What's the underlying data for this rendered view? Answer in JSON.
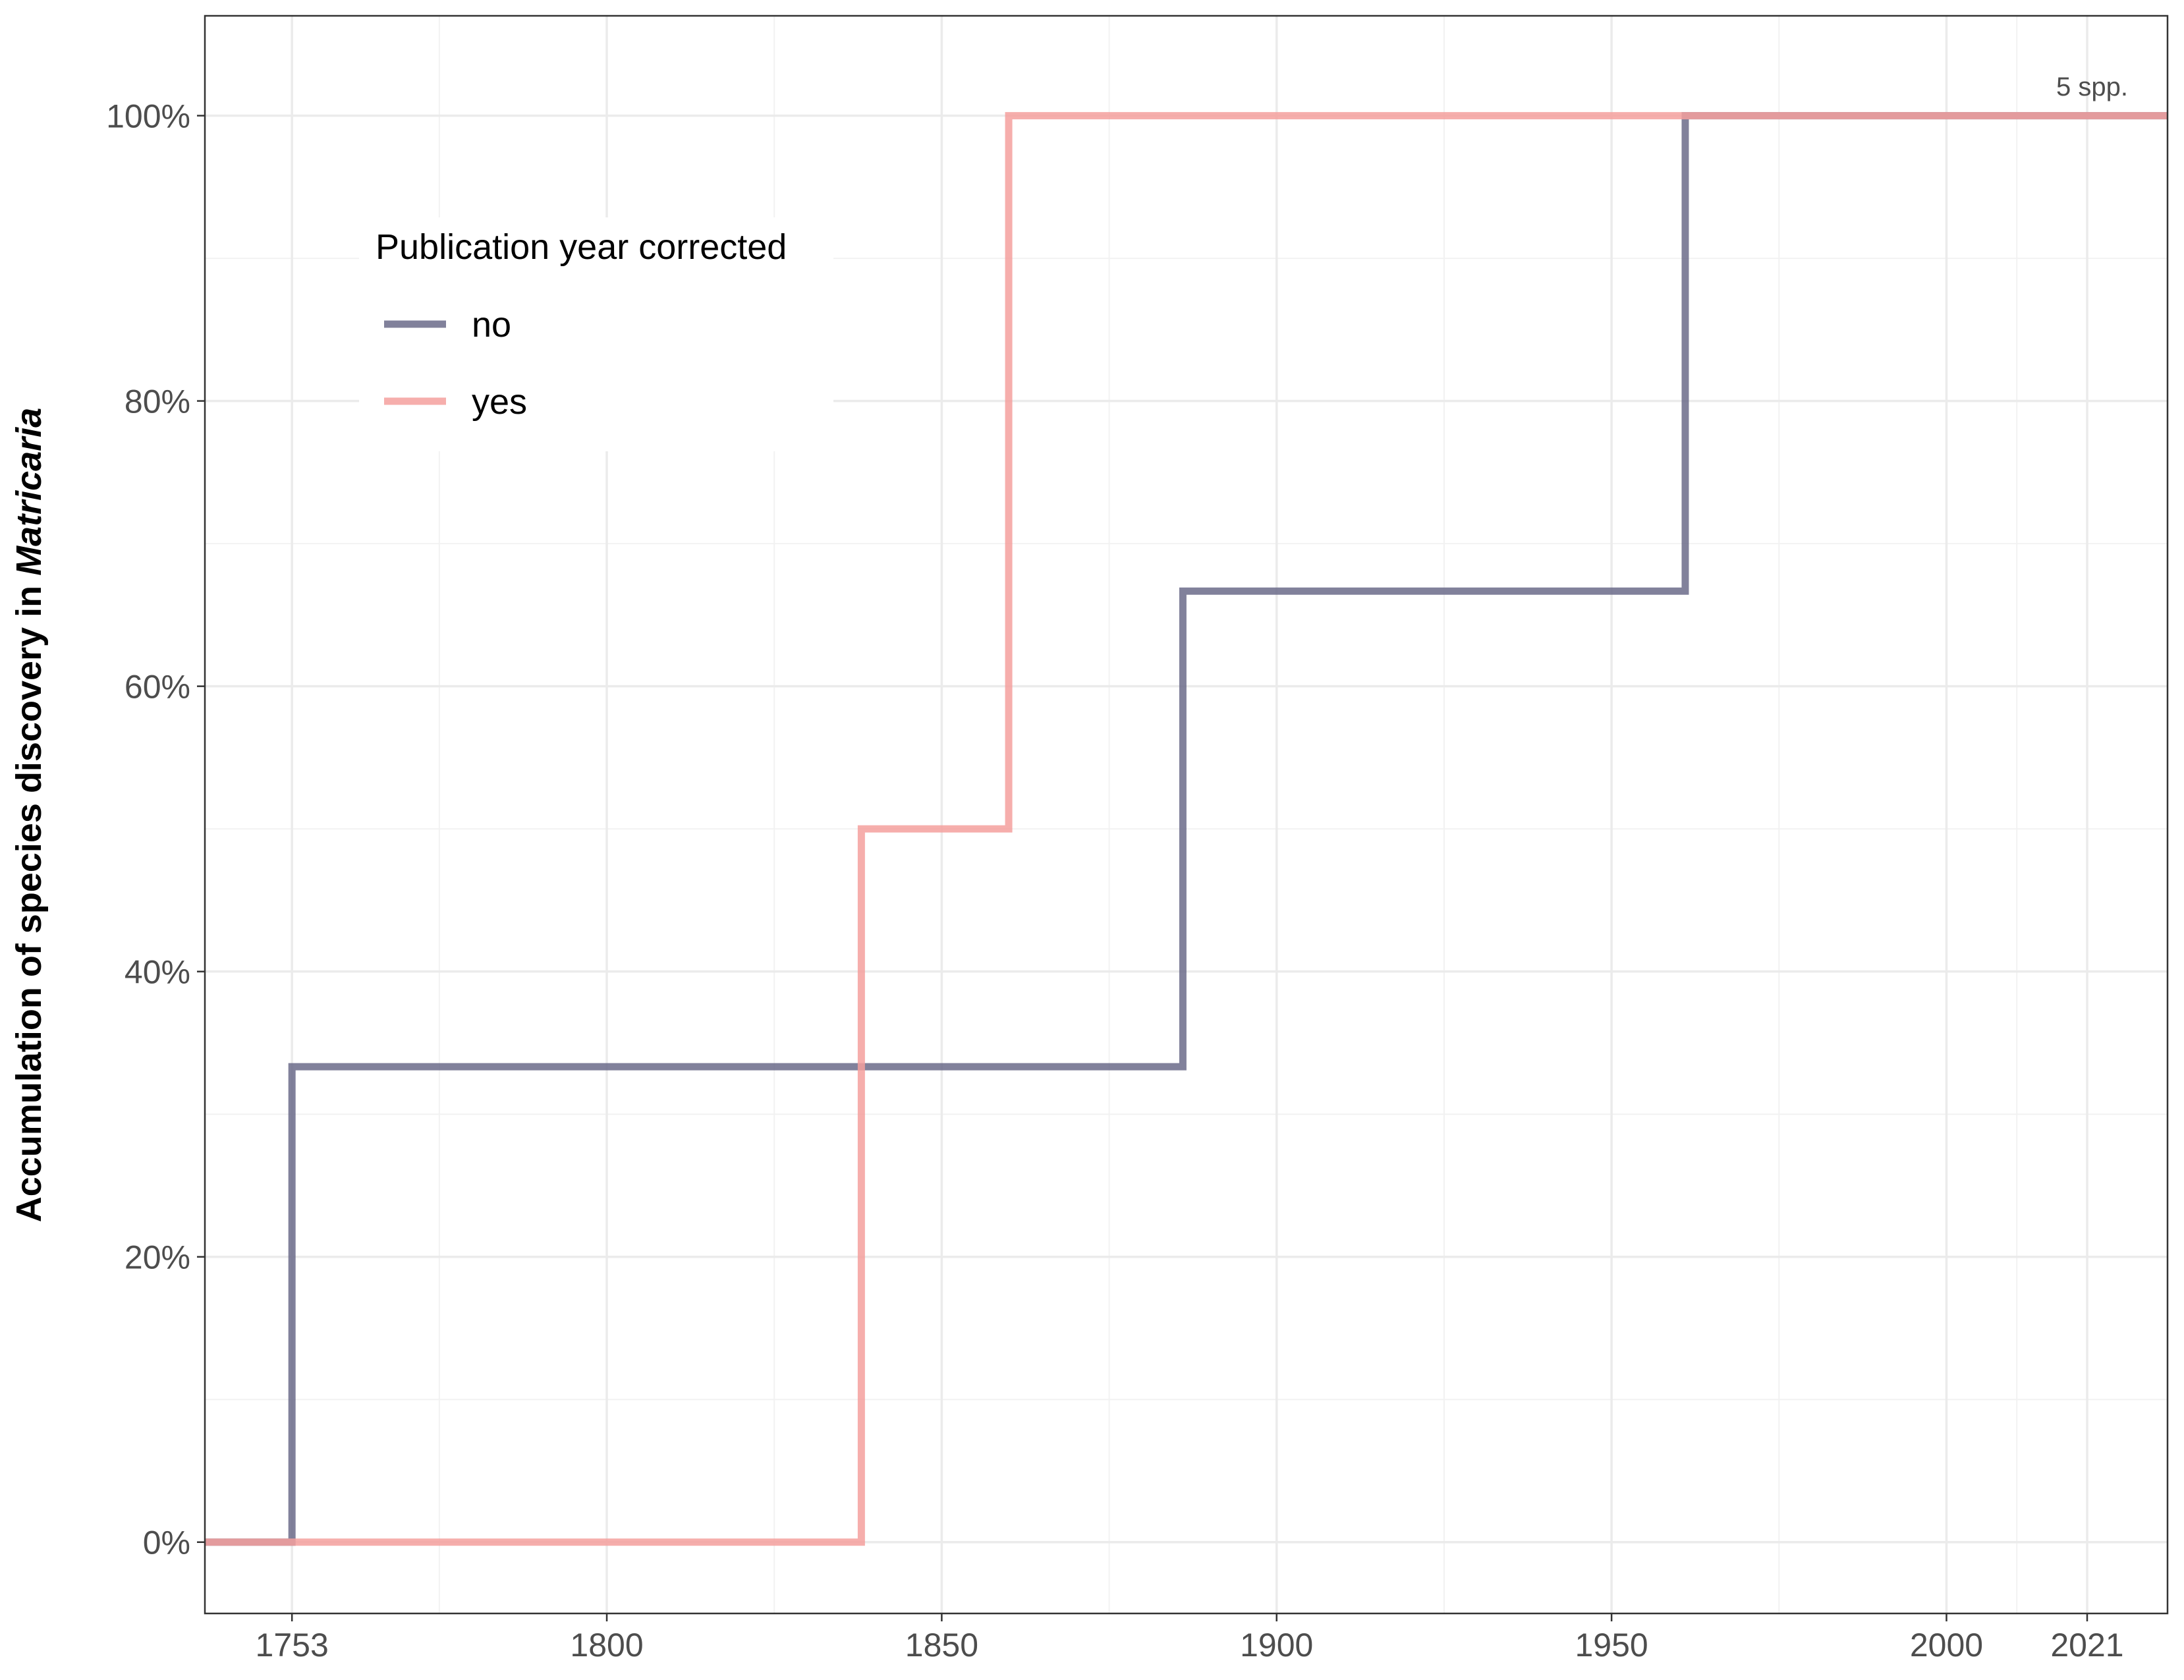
{
  "chart_data": {
    "type": "line",
    "step": true,
    "xlabel": "",
    "ylabel_prefix": "Accumulation of species discovery in ",
    "ylabel_italic": "Matricaria",
    "xlim": [
      1740,
      2033
    ],
    "ylim": [
      -0.05,
      1.07
    ],
    "x_ticks": [
      1753,
      1800,
      1850,
      1900,
      1950,
      2000,
      2021
    ],
    "x_tick_labels": [
      "1753",
      "1800",
      "1850",
      "1900",
      "1950",
      "2000",
      "2021"
    ],
    "x_minor_grid": [
      1775,
      1825,
      1875,
      1925,
      1975,
      2010.5
    ],
    "y_ticks": [
      0,
      0.2,
      0.4,
      0.6,
      0.8,
      1.0
    ],
    "y_tick_labels": [
      "0%",
      "20%",
      "40%",
      "60%",
      "80%",
      "100%"
    ],
    "y_minor_grid": [
      0.1,
      0.3,
      0.5,
      0.7,
      0.9
    ],
    "grid": true,
    "legend": {
      "title": "Publication year corrected",
      "position": "top-left inside",
      "items": [
        {
          "label": "no",
          "color": "#6b6b8a"
        },
        {
          "label": "yes",
          "color": "#f4a09e"
        }
      ]
    },
    "annotation": "5  spp.",
    "series": [
      {
        "name": "no",
        "color": "#6b6b8a",
        "x": [
          1740,
          1753,
          1886,
          1961,
          2033
        ],
        "y": [
          0,
          0.3333,
          0.6667,
          1.0,
          1.0
        ]
      },
      {
        "name": "yes",
        "color": "#f4a09e",
        "x": [
          1740,
          1838,
          1860,
          2033
        ],
        "y": [
          0,
          0.5,
          1.0,
          1.0
        ]
      }
    ]
  }
}
